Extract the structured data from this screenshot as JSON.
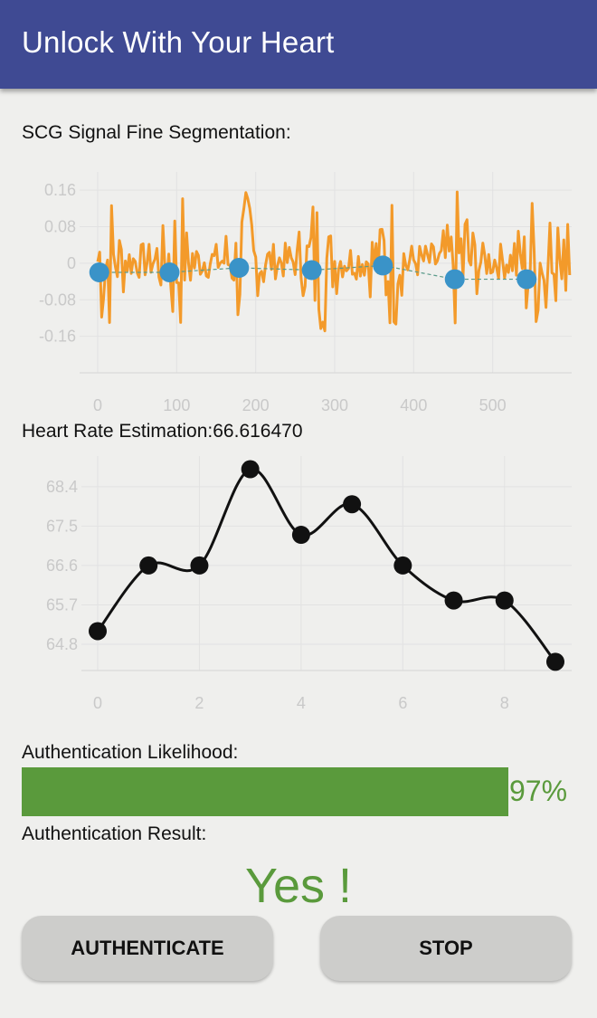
{
  "appbar": {
    "title": "Unlock With Your Heart"
  },
  "scg": {
    "label": "SCG Signal Fine Segmentation:",
    "colors": {
      "signal": "#f39a2a",
      "marker": "#3a93c8",
      "grid": "#e2e2e2",
      "tick": "#c9c9c9"
    },
    "chart_data": {
      "type": "line",
      "xlim": [
        0,
        600
      ],
      "ylim": [
        -0.24,
        0.2
      ],
      "x_ticks": [
        0,
        100,
        200,
        300,
        400,
        500
      ],
      "y_ticks": [
        0.16,
        0.08,
        0,
        -0.08,
        -0.16
      ],
      "y_tick_labels": [
        "0.16",
        "0.08",
        "0",
        "-0.08",
        "-0.16"
      ],
      "segmentation_points": [
        {
          "x": 2,
          "y": -0.02
        },
        {
          "x": 91,
          "y": -0.02
        },
        {
          "x": 179,
          "y": -0.01
        },
        {
          "x": 271,
          "y": -0.015
        },
        {
          "x": 361,
          "y": -0.005
        },
        {
          "x": 452,
          "y": -0.035
        },
        {
          "x": 543,
          "y": -0.035
        }
      ],
      "grid": true
    }
  },
  "heart_rate": {
    "label": "Heart Rate Estimation:66.616470",
    "colors": {
      "line": "#111111",
      "grid": "#e2e2e2",
      "tick": "#c9c9c9"
    },
    "chart_data": {
      "type": "line",
      "x": [
        0,
        1,
        2,
        3,
        4,
        5,
        6,
        7,
        8,
        9
      ],
      "y": [
        65.1,
        66.6,
        66.6,
        68.8,
        67.3,
        68.0,
        66.6,
        65.8,
        65.8,
        64.4
      ],
      "xlim": [
        -0.15,
        9.1
      ],
      "ylim": [
        64.2,
        69.1
      ],
      "x_ticks": [
        0,
        2,
        4,
        6,
        8
      ],
      "y_ticks": [
        68.4,
        67.5,
        66.6,
        65.7,
        64.8
      ],
      "y_tick_labels": [
        "68.4",
        "67.5",
        "66.6",
        "65.7",
        "64.8"
      ],
      "grid": true
    }
  },
  "likelihood": {
    "label": "Authentication Likelihood:",
    "value": 0.97,
    "percent_label": "97%",
    "color": "#5a9a3c"
  },
  "result": {
    "label": "Authentication Result:",
    "value": "Yes !",
    "color": "#5a9a3c"
  },
  "buttons": {
    "authenticate": "AUTHENTICATE",
    "stop": "STOP"
  }
}
